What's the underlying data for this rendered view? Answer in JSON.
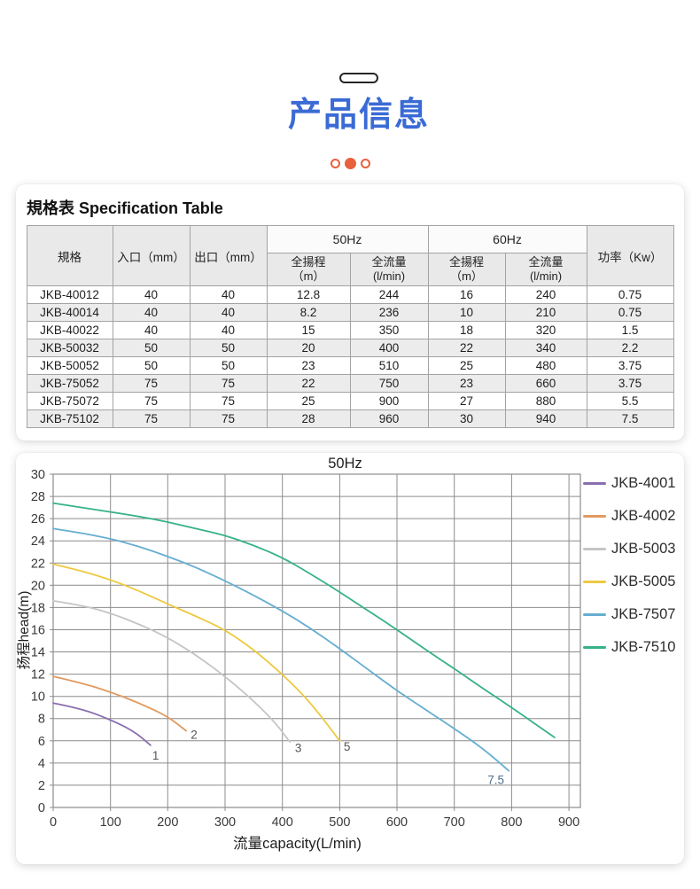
{
  "header": {
    "title": "产品信息",
    "accent_blue": "#3A6BD5",
    "accent_orange": "#E8603C"
  },
  "spec_section": {
    "heading": "規格表 Specification Table",
    "table": {
      "headers": {
        "spec": "規格",
        "inlet": "入口（mm）",
        "outlet": "出口（mm）",
        "hz50": "50Hz",
        "hz60": "60Hz",
        "head_m": "全揚程\n（m）",
        "flow_lmin": "全流量\n(l/min)",
        "power": "功率（Kw）"
      },
      "rows": [
        [
          "JKB-40012",
          "40",
          "40",
          "12.8",
          "244",
          "16",
          "240",
          "0.75"
        ],
        [
          "JKB-40014",
          "40",
          "40",
          "8.2",
          "236",
          "10",
          "210",
          "0.75"
        ],
        [
          "JKB-40022",
          "40",
          "40",
          "15",
          "350",
          "18",
          "320",
          "1.5"
        ],
        [
          "JKB-50032",
          "50",
          "50",
          "20",
          "400",
          "22",
          "340",
          "2.2"
        ],
        [
          "JKB-50052",
          "50",
          "50",
          "23",
          "510",
          "25",
          "480",
          "3.75"
        ],
        [
          "JKB-75052",
          "75",
          "75",
          "22",
          "750",
          "23",
          "660",
          "3.75"
        ],
        [
          "JKB-75072",
          "75",
          "75",
          "25",
          "900",
          "27",
          "880",
          "5.5"
        ],
        [
          "JKB-75102",
          "75",
          "75",
          "28",
          "960",
          "30",
          "940",
          "7.5"
        ]
      ]
    }
  },
  "chart_data": {
    "type": "line",
    "title": "50Hz",
    "xlabel": "流量capacity(L/min)",
    "ylabel": "扬程head(m)",
    "xlim": [
      0,
      920
    ],
    "ylim": [
      0,
      30
    ],
    "x_ticks": [
      0,
      100,
      200,
      300,
      400,
      500,
      600,
      700,
      800,
      900
    ],
    "y_ticks": [
      0,
      2,
      4,
      6,
      8,
      10,
      12,
      14,
      16,
      18,
      20,
      22,
      24,
      26,
      28,
      30
    ],
    "grid": true,
    "grid_color": "#8c8c8c",
    "legend_position": "right",
    "series": [
      {
        "name": "JKB-4001",
        "color": "#8A6FAF",
        "points": [
          [
            0,
            9.4
          ],
          [
            50,
            8.9
          ],
          [
            100,
            7.9
          ],
          [
            140,
            6.9
          ],
          [
            170,
            5.6
          ]
        ],
        "end_label": {
          "text": "1",
          "x": 173,
          "y": 4.3,
          "color": "#555555"
        }
      },
      {
        "name": "JKB-4002",
        "color": "#E09A5F",
        "points": [
          [
            0,
            11.8
          ],
          [
            50,
            11.2
          ],
          [
            100,
            10.4
          ],
          [
            150,
            9.4
          ],
          [
            200,
            8.2
          ],
          [
            232,
            6.9
          ]
        ],
        "end_label": {
          "text": "2",
          "x": 240,
          "y": 6.2,
          "color": "#555555"
        }
      },
      {
        "name": "JKB-5003",
        "color": "#C5C5C8",
        "points": [
          [
            0,
            18.6
          ],
          [
            50,
            18.2
          ],
          [
            100,
            17.5
          ],
          [
            150,
            16.5
          ],
          [
            200,
            15.3
          ],
          [
            250,
            13.7
          ],
          [
            300,
            11.8
          ],
          [
            350,
            9.6
          ],
          [
            390,
            7.5
          ],
          [
            413,
            5.9
          ]
        ],
        "end_label": {
          "text": "3",
          "x": 422,
          "y": 5.0,
          "color": "#555555"
        }
      },
      {
        "name": "JKB-5005",
        "color": "#EDC93F",
        "points": [
          [
            0,
            21.9
          ],
          [
            50,
            21.3
          ],
          [
            100,
            20.5
          ],
          [
            150,
            19.5
          ],
          [
            200,
            18.3
          ],
          [
            250,
            17.2
          ],
          [
            300,
            16.0
          ],
          [
            350,
            14.2
          ],
          [
            400,
            12.0
          ],
          [
            450,
            9.4
          ],
          [
            500,
            6.0
          ]
        ],
        "end_label": {
          "text": "5",
          "x": 507,
          "y": 5.1,
          "color": "#555555"
        }
      },
      {
        "name": "JKB-7507",
        "color": "#66AED2",
        "points": [
          [
            0,
            25.1
          ],
          [
            50,
            24.7
          ],
          [
            100,
            24.2
          ],
          [
            150,
            23.5
          ],
          [
            200,
            22.6
          ],
          [
            250,
            21.6
          ],
          [
            300,
            20.4
          ],
          [
            350,
            19.1
          ],
          [
            400,
            17.7
          ],
          [
            450,
            16.1
          ],
          [
            500,
            14.3
          ],
          [
            550,
            12.4
          ],
          [
            600,
            10.5
          ],
          [
            650,
            8.8
          ],
          [
            700,
            7.1
          ],
          [
            750,
            5.3
          ],
          [
            795,
            3.3
          ]
        ],
        "end_label": {
          "text": "7.5",
          "x": 758,
          "y": 2.1,
          "color": "#50708e"
        }
      },
      {
        "name": "JKB-7510",
        "color": "#36B287",
        "points": [
          [
            0,
            27.4
          ],
          [
            50,
            27.0
          ],
          [
            100,
            26.6
          ],
          [
            150,
            26.2
          ],
          [
            200,
            25.7
          ],
          [
            250,
            25.1
          ],
          [
            300,
            24.5
          ],
          [
            350,
            23.6
          ],
          [
            400,
            22.5
          ],
          [
            450,
            21.0
          ],
          [
            500,
            19.4
          ],
          [
            550,
            17.7
          ],
          [
            600,
            16.0
          ],
          [
            650,
            14.2
          ],
          [
            700,
            12.5
          ],
          [
            750,
            10.7
          ],
          [
            800,
            9.0
          ],
          [
            875,
            6.3
          ]
        ]
      }
    ]
  }
}
